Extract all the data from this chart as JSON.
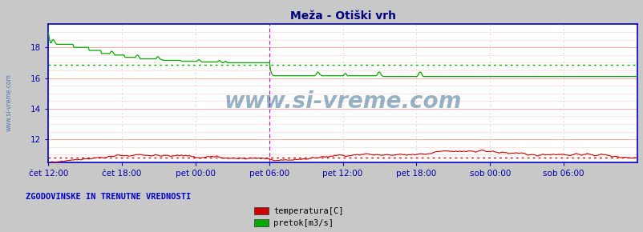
{
  "title": "Meža - Otiški vrh",
  "title_color": "#000080",
  "bg_color": "#c8c8c8",
  "plot_bg_color": "#ffffff",
  "x_labels": [
    "čet 12:00",
    "čet 18:00",
    "pet 00:00",
    "pet 06:00",
    "pet 12:00",
    "pet 18:00",
    "sob 00:00",
    "sob 06:00"
  ],
  "x_ticks_pos": [
    0.0,
    0.125,
    0.25,
    0.375,
    0.5,
    0.625,
    0.75,
    0.875
  ],
  "ylim": [
    10.5,
    19.5
  ],
  "yticks": [
    12,
    14,
    16,
    18
  ],
  "ylabel_color": "#0000aa",
  "grid_h_color": "#ffaaaa",
  "grid_v_color": "#ffcccc",
  "temp_color": "#cc0000",
  "flow_color": "#00aa00",
  "temp_avg_color": "#cc0000",
  "flow_avg_color": "#00aa00",
  "border_color": "#0000cc",
  "vline_color": "#cc00cc",
  "watermark": "www.si-vreme.com",
  "watermark_color": "#1a5580",
  "legend_title": "ZGODOVINSKE IN TRENUTNE VREDNOSTI",
  "legend_title_color": "#0000cc",
  "legend_items": [
    "temperatura[C]",
    "pretok[m3/s]"
  ],
  "legend_colors": [
    "#cc0000",
    "#00aa00"
  ],
  "n_points": 576,
  "temp_avg": 10.8,
  "flow_avg": 16.85,
  "vline_x": 0.375
}
